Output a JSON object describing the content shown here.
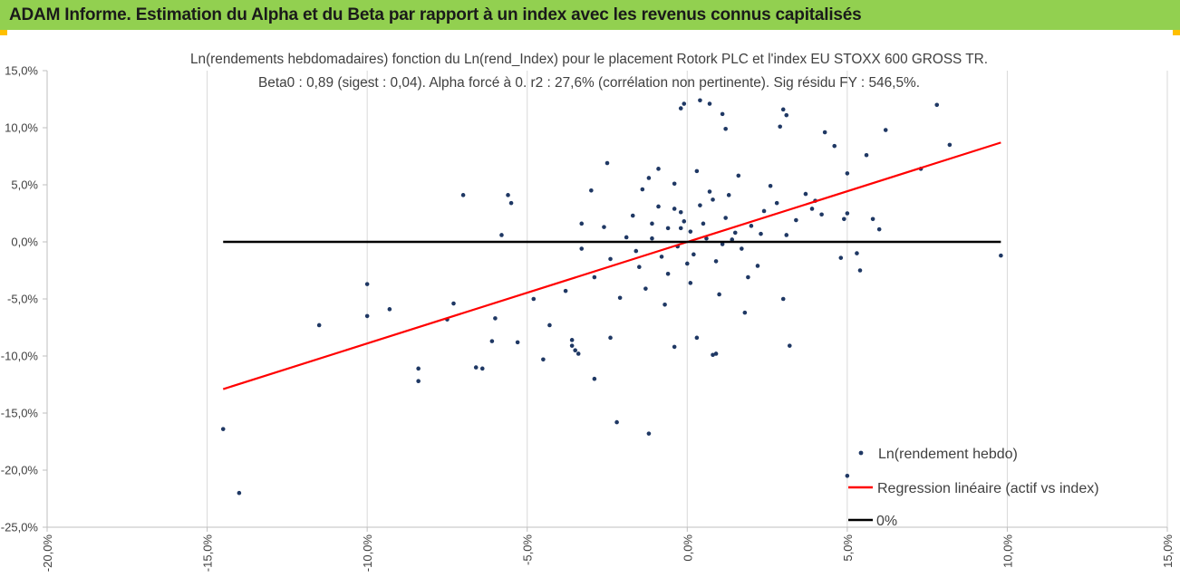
{
  "window": {
    "title": "ADAM Informe. Estimation du Alpha et du Beta par rapport à un index avec les revenus connus capitalisés"
  },
  "colors": {
    "title_bar": "#92d050",
    "corner_accent": "#ffc000",
    "points": "#1f3864",
    "regression": "#ff0000",
    "zero_line": "#000000",
    "grid": "#d9d9d9"
  },
  "chart_data": {
    "type": "scatter",
    "title": "Ln(rendements hebdomadaires) fonction du Ln(rend_Index) pour le placement Rotork PLC et l'index EU STOXX 600 GROSS TR.",
    "subtitle": "Beta0 : 0,89  (sigest : 0,04).  Alpha forcé à 0. r2 : 27,6% (corrélation non pertinente). Sig résidu FY : 546,5%.",
    "xlim": [
      -0.2,
      0.15
    ],
    "ylim": [
      -0.25,
      0.15
    ],
    "x_ticks": [
      "-20,0%",
      "-15,0%",
      "-10,0%",
      "-5,0%",
      "0,0%",
      "5,0%",
      "10,0%",
      "15,0%"
    ],
    "y_ticks": [
      "15,0%",
      "10,0%",
      "5,0%",
      "0,0%",
      "-5,0%",
      "-10,0%",
      "-15,0%",
      "-20,0%",
      "-25,0%"
    ],
    "grid": "vertical",
    "legend_position": "bottom-right",
    "series": [
      {
        "name": "Ln(rendement hebdo)",
        "kind": "scatter",
        "points": [
          [
            -0.145,
            -0.164
          ],
          [
            -0.14,
            -0.22
          ],
          [
            -0.115,
            -0.073
          ],
          [
            -0.1,
            -0.037
          ],
          [
            -0.1,
            -0.065
          ],
          [
            -0.093,
            -0.059
          ],
          [
            -0.084,
            -0.111
          ],
          [
            -0.084,
            -0.122
          ],
          [
            -0.075,
            -0.068
          ],
          [
            -0.073,
            -0.054
          ],
          [
            -0.07,
            0.041
          ],
          [
            -0.066,
            -0.11
          ],
          [
            -0.064,
            -0.111
          ],
          [
            -0.061,
            -0.087
          ],
          [
            -0.058,
            0.006
          ],
          [
            -0.056,
            0.041
          ],
          [
            -0.055,
            0.034
          ],
          [
            -0.053,
            -0.088
          ],
          [
            -0.06,
            -0.067
          ],
          [
            -0.048,
            -0.05
          ],
          [
            -0.045,
            -0.103
          ],
          [
            -0.043,
            -0.073
          ],
          [
            -0.036,
            -0.086
          ],
          [
            -0.036,
            -0.091
          ],
          [
            -0.035,
            -0.095
          ],
          [
            -0.034,
            -0.098
          ],
          [
            -0.033,
            0.016
          ],
          [
            -0.03,
            0.045
          ],
          [
            -0.029,
            -0.12
          ],
          [
            -0.025,
            0.069
          ],
          [
            -0.024,
            -0.084
          ],
          [
            -0.022,
            -0.158
          ],
          [
            -0.012,
            -0.168
          ],
          [
            -0.012,
            0.056
          ],
          [
            -0.009,
            0.064
          ],
          [
            -0.004,
            0.029
          ],
          [
            -0.004,
            -0.092
          ],
          [
            -0.002,
            0.012
          ],
          [
            -0.002,
            0.117
          ],
          [
            -0.001,
            0.121
          ],
          [
            0.003,
            -0.084
          ],
          [
            0.004,
            0.124
          ],
          [
            0.007,
            0.121
          ],
          [
            0.008,
            -0.099
          ],
          [
            0.009,
            -0.098
          ],
          [
            0.011,
            0.112
          ],
          [
            0.012,
            0.099
          ],
          [
            0.018,
            -0.062
          ],
          [
            0.029,
            0.101
          ],
          [
            0.03,
            -0.05
          ],
          [
            0.03,
            0.116
          ],
          [
            0.031,
            0.111
          ],
          [
            0.032,
            -0.091
          ],
          [
            0.04,
            0.036
          ],
          [
            0.042,
            0.024
          ],
          [
            0.043,
            0.096
          ],
          [
            0.046,
            0.084
          ],
          [
            0.048,
            -0.014
          ],
          [
            0.049,
            0.02
          ],
          [
            0.05,
            0.06
          ],
          [
            0.05,
            -0.205
          ],
          [
            0.05,
            0.025
          ],
          [
            0.053,
            -0.01
          ],
          [
            0.054,
            -0.025
          ],
          [
            0.056,
            0.076
          ],
          [
            0.058,
            0.02
          ],
          [
            0.06,
            0.011
          ],
          [
            0.062,
            0.098
          ],
          [
            0.073,
            0.064
          ],
          [
            0.078,
            0.12
          ],
          [
            0.082,
            0.085
          ],
          [
            0.098,
            -0.012
          ],
          [
            -0.006,
            0.012
          ],
          [
            -0.003,
            -0.004
          ],
          [
            0.001,
            0.009
          ],
          [
            0.005,
            0.016
          ],
          [
            -0.008,
            -0.013
          ],
          [
            0.012,
            0.021
          ],
          [
            0.002,
            -0.011
          ],
          [
            -0.011,
            0.003
          ],
          [
            0.015,
            0.008
          ],
          [
            0.004,
            0.032
          ],
          [
            -0.015,
            -0.022
          ],
          [
            0.02,
            0.014
          ],
          [
            -0.002,
            0.026
          ],
          [
            0.009,
            -0.017
          ],
          [
            -0.019,
            0.004
          ],
          [
            0.024,
            0.027
          ],
          [
            0.007,
            0.044
          ],
          [
            -0.013,
            -0.041
          ],
          [
            0.017,
            -0.006
          ],
          [
            -0.024,
            -0.015
          ],
          [
            0.001,
            -0.036
          ],
          [
            0.028,
            0.034
          ],
          [
            -0.004,
            0.051
          ],
          [
            0.013,
            0.041
          ],
          [
            -0.029,
            -0.031
          ],
          [
            0.022,
            -0.021
          ],
          [
            -0.007,
            -0.055
          ],
          [
            0.034,
            0.019
          ],
          [
            0.003,
            0.062
          ],
          [
            -0.017,
            0.023
          ],
          [
            0.026,
            0.049
          ],
          [
            -0.033,
            -0.006
          ],
          [
            0.01,
            -0.046
          ],
          [
            0.037,
            0.042
          ],
          [
            -0.021,
            -0.049
          ],
          [
            0.006,
            0.003
          ],
          [
            -0.001,
            0.018
          ],
          [
            0.011,
            -0.002
          ],
          [
            -0.009,
            0.031
          ],
          [
            0.019,
            -0.031
          ],
          [
            -0.026,
            0.013
          ],
          [
            0.031,
            0.006
          ],
          [
            -0.014,
            0.046
          ],
          [
            0.016,
            0.058
          ],
          [
            -0.038,
            -0.043
          ],
          [
            0.039,
            0.029
          ],
          [
            -0.006,
            -0.028
          ],
          [
            0.023,
            0.007
          ],
          [
            0.008,
            0.037
          ],
          [
            -0.016,
            -0.008
          ],
          [
            0.014,
            0.002
          ],
          [
            0.0,
            -0.019
          ],
          [
            -0.011,
            0.016
          ]
        ]
      },
      {
        "name": "Regression linéaire (actif vs index)",
        "kind": "line",
        "points": [
          [
            -0.145,
            -0.129
          ],
          [
            0.098,
            0.087
          ]
        ]
      },
      {
        "name": "0%",
        "kind": "line",
        "points": [
          [
            -0.145,
            0.0
          ],
          [
            0.098,
            0.0
          ]
        ]
      }
    ]
  }
}
